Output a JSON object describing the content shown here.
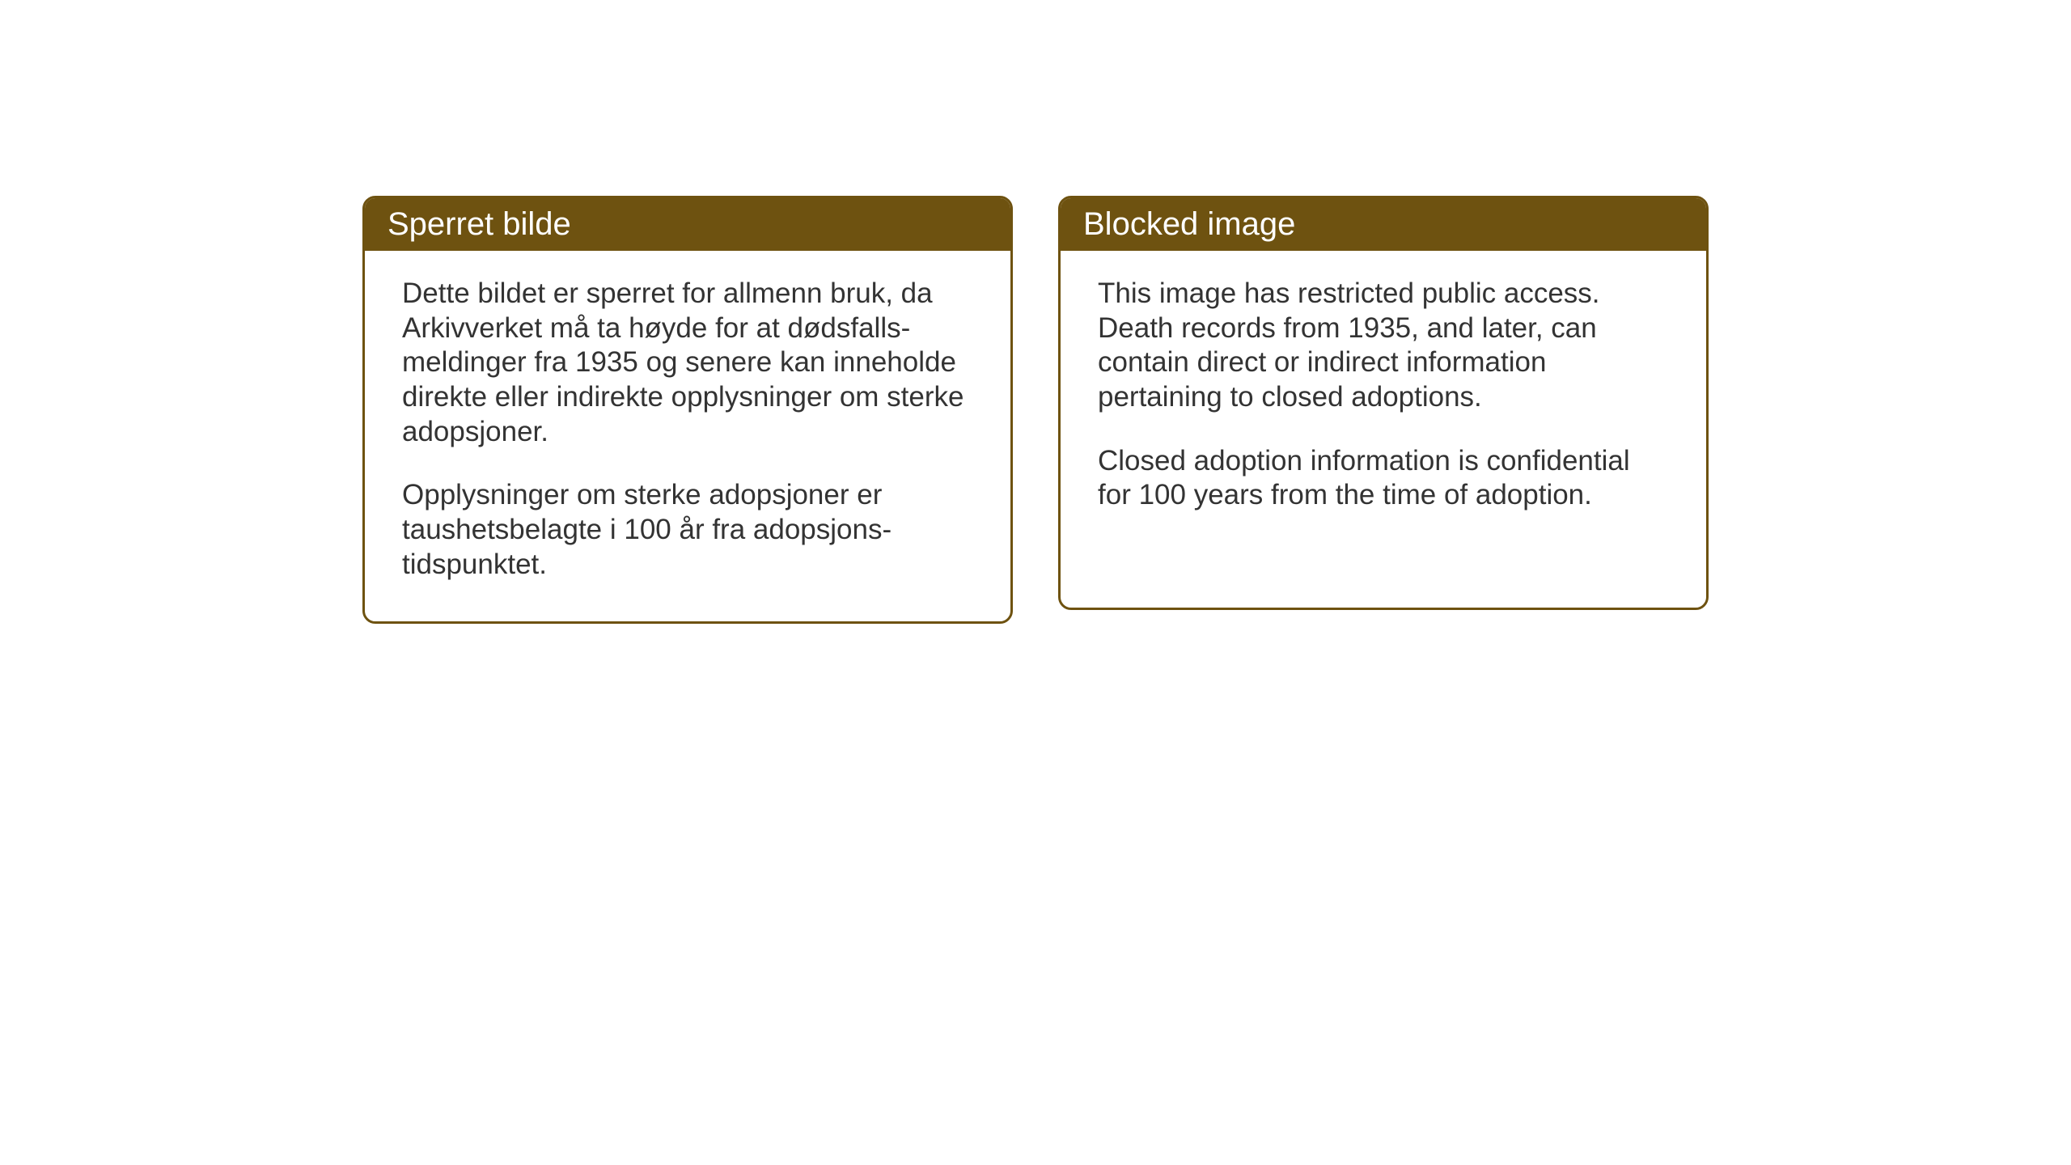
{
  "layout": {
    "background_color": "#ffffff",
    "card_border_color": "#6e5210",
    "header_background_color": "#6e5210",
    "header_text_color": "#ffffff",
    "body_text_color": "#333333",
    "card_border_radius": 16,
    "card_border_width": 3,
    "header_fontsize": 40,
    "body_fontsize": 35
  },
  "cards": {
    "norwegian": {
      "title": "Sperret bilde",
      "paragraph1": "Dette bildet er sperret for allmenn bruk, da Arkivverket må ta høyde for at dødsfalls-meldinger fra 1935 og senere kan inneholde direkte eller indirekte opplysninger om sterke adopsjoner.",
      "paragraph2": "Opplysninger om sterke adopsjoner er taushetsbelagte i 100 år fra adopsjons-tidspunktet."
    },
    "english": {
      "title": "Blocked image",
      "paragraph1": "This image has restricted public access. Death records from 1935, and later, can contain direct or indirect information pertaining to closed adoptions.",
      "paragraph2": "Closed adoption information is confidential for 100 years from the time of adoption."
    }
  }
}
